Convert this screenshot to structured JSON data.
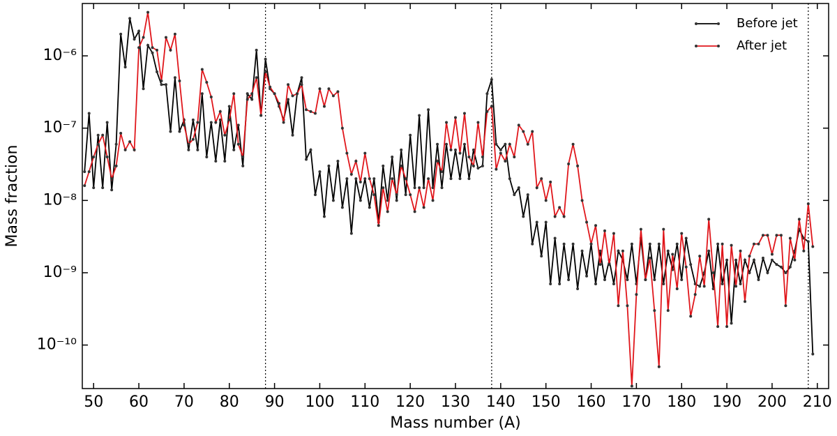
{
  "chart_data": {
    "type": "line",
    "xlabel": "Mass number (A)",
    "ylabel": "Mass fraction",
    "log_y": true,
    "legend": "upper right",
    "xlim": [
      47.5,
      212.5
    ],
    "ylim": [
      2.5e-11,
      5.3e-06
    ],
    "xticks": [
      50,
      60,
      70,
      80,
      90,
      100,
      110,
      120,
      130,
      140,
      150,
      160,
      170,
      180,
      190,
      200,
      210
    ],
    "yticks": [
      {
        "value": 1e-10,
        "label": "10⁻¹⁰"
      },
      {
        "value": 1e-09,
        "label": "10⁻⁹"
      },
      {
        "value": 1e-08,
        "label": "10⁻⁸"
      },
      {
        "value": 1e-07,
        "label": "10⁻⁷"
      },
      {
        "value": 1e-06,
        "label": "10⁻⁶"
      }
    ],
    "vlines": [
      88,
      138,
      208
    ],
    "x": [
      48,
      49,
      50,
      51,
      52,
      53,
      54,
      55,
      56,
      57,
      58,
      59,
      60,
      61,
      62,
      63,
      64,
      65,
      66,
      67,
      68,
      69,
      70,
      71,
      72,
      73,
      74,
      75,
      76,
      77,
      78,
      79,
      80,
      81,
      82,
      83,
      84,
      85,
      86,
      87,
      88,
      89,
      90,
      91,
      92,
      93,
      94,
      95,
      96,
      97,
      98,
      99,
      100,
      101,
      102,
      103,
      104,
      105,
      106,
      107,
      108,
      109,
      110,
      111,
      112,
      113,
      114,
      115,
      116,
      117,
      118,
      119,
      120,
      121,
      122,
      123,
      124,
      125,
      126,
      127,
      128,
      129,
      130,
      131,
      132,
      133,
      134,
      135,
      136,
      137,
      138,
      139,
      140,
      141,
      142,
      143,
      144,
      145,
      146,
      147,
      148,
      149,
      150,
      151,
      152,
      153,
      154,
      155,
      156,
      157,
      158,
      159,
      160,
      161,
      162,
      163,
      164,
      165,
      166,
      167,
      168,
      169,
      170,
      171,
      172,
      173,
      174,
      175,
      176,
      177,
      178,
      179,
      180,
      181,
      182,
      183,
      184,
      185,
      186,
      187,
      188,
      189,
      190,
      191,
      192,
      193,
      194,
      195,
      196,
      197,
      198,
      199,
      200,
      201,
      202,
      203,
      204,
      205,
      206,
      207,
      208,
      209
    ],
    "series": [
      {
        "name": "Before jet",
        "color": "#000000",
        "values": [
          2.5e-08,
          1.6e-07,
          1.5e-08,
          8e-08,
          1.5e-08,
          1.2e-07,
          1.4e-08,
          6e-08,
          2e-06,
          7e-07,
          3.3e-06,
          1.7e-06,
          2.2e-06,
          3.5e-07,
          1.4e-06,
          1.1e-06,
          6e-07,
          4e-07,
          4e-07,
          9e-08,
          5e-07,
          9e-08,
          1.3e-07,
          5e-08,
          1.3e-07,
          5e-08,
          3e-07,
          4e-08,
          1.2e-07,
          3.5e-08,
          1.3e-07,
          3.5e-08,
          2e-07,
          5e-08,
          1.1e-07,
          3e-08,
          3e-07,
          2.5e-07,
          1.2e-06,
          1.5e-07,
          9e-07,
          3.5e-07,
          3e-07,
          2e-07,
          1.3e-07,
          2.5e-07,
          8e-08,
          3e-07,
          5e-07,
          3.7e-08,
          5e-08,
          1.2e-08,
          2.5e-08,
          6e-09,
          3e-08,
          1e-08,
          3.5e-08,
          8e-09,
          2e-08,
          3.5e-09,
          2e-08,
          1e-08,
          2e-08,
          8e-09,
          2e-08,
          5e-09,
          3e-08,
          1e-08,
          4e-08,
          1e-08,
          5e-08,
          1.2e-08,
          8e-08,
          1.5e-08,
          1.5e-07,
          1.5e-08,
          1.8e-07,
          1.5e-08,
          6e-08,
          1.5e-08,
          6e-08,
          2e-08,
          5e-08,
          2e-08,
          6e-08,
          2e-08,
          5e-08,
          2.8e-08,
          3e-08,
          3e-07,
          4.7e-07,
          6e-08,
          5e-08,
          6e-08,
          2e-08,
          1.2e-08,
          1.5e-08,
          6e-09,
          1.2e-08,
          2.5e-09,
          5e-09,
          1.7e-09,
          5e-09,
          7e-10,
          3e-09,
          7e-10,
          2.5e-09,
          8e-10,
          2.5e-09,
          6e-10,
          2e-09,
          9e-10,
          2.5e-09,
          7e-10,
          2e-09,
          8e-10,
          1.5e-09,
          7e-10,
          2e-09,
          1.5e-09,
          8e-10,
          2.5e-09,
          7e-10,
          3e-09,
          8e-10,
          2.5e-09,
          8e-10,
          2.5e-09,
          7e-10,
          2e-09,
          1.1e-09,
          2.5e-09,
          8e-10,
          3e-09,
          1.3e-09,
          7e-10,
          6.5e-10,
          1e-09,
          2e-09,
          6e-10,
          2.5e-09,
          7e-10,
          1.5e-09,
          2e-10,
          1.5e-09,
          7e-10,
          1.5e-09,
          1e-09,
          1.5e-09,
          8e-10,
          1.6e-09,
          1e-09,
          1.5e-09,
          1.3e-09,
          1.2e-09,
          1e-09,
          1.2e-09,
          2e-09,
          4e-09,
          3e-09,
          2.7e-09,
          7.5e-11
        ]
      },
      {
        "name": "After jet",
        "color": "#e0161b",
        "values": [
          1.6e-08,
          2.5e-08,
          4e-08,
          6e-08,
          8e-08,
          4e-08,
          2e-08,
          3e-08,
          8.5e-08,
          5e-08,
          6.5e-08,
          5e-08,
          1.3e-06,
          1.8e-06,
          4e-06,
          1.3e-06,
          1.2e-06,
          4.5e-07,
          1.8e-06,
          1.2e-06,
          2e-06,
          4.5e-07,
          1.1e-07,
          6e-08,
          7e-08,
          1.2e-07,
          6.5e-07,
          4.3e-07,
          2.7e-07,
          1.2e-07,
          1.7e-07,
          8e-08,
          1.3e-07,
          3e-07,
          6e-08,
          4e-08,
          2.5e-07,
          3e-07,
          5e-07,
          1.5e-07,
          6e-07,
          3.7e-07,
          3e-07,
          2.2e-07,
          1.2e-07,
          4e-07,
          2.8e-07,
          3e-07,
          4e-07,
          1.8e-07,
          1.7e-07,
          1.6e-07,
          3.5e-07,
          2e-07,
          3.5e-07,
          2.8e-07,
          3.2e-07,
          1e-07,
          4.5e-08,
          2.3e-08,
          3.5e-08,
          1.8e-08,
          4.5e-08,
          2e-08,
          1.2e-08,
          4.5e-09,
          1.5e-08,
          7e-09,
          2e-08,
          1.2e-08,
          3e-08,
          2e-08,
          1.2e-08,
          7e-09,
          1.5e-08,
          8e-09,
          2e-08,
          1e-08,
          3.5e-08,
          2.5e-08,
          1.2e-07,
          5e-08,
          1.4e-07,
          4.5e-08,
          1.6e-07,
          4e-08,
          3e-08,
          1.2e-07,
          4e-08,
          1.7e-07,
          2e-07,
          2.7e-08,
          4.5e-08,
          3.5e-08,
          6e-08,
          4e-08,
          1.1e-07,
          9e-08,
          6e-08,
          9e-08,
          1.5e-08,
          2e-08,
          1e-08,
          1.8e-08,
          6e-09,
          8e-09,
          6e-09,
          3.2e-08,
          6e-08,
          3e-08,
          1e-08,
          5e-09,
          2.5e-09,
          4.5e-09,
          1.3e-09,
          3.8e-09,
          1.3e-09,
          3.5e-09,
          3.5e-10,
          2e-09,
          3.5e-10,
          2.7e-11,
          5e-10,
          4e-09,
          8e-10,
          1.6e-09,
          3e-10,
          5e-11,
          4e-09,
          3e-10,
          1.8e-09,
          6e-10,
          3.5e-09,
          1.2e-09,
          2.5e-10,
          5e-10,
          1.7e-09,
          6.5e-10,
          5.5e-09,
          1e-09,
          1.8e-10,
          2.5e-09,
          1.8e-10,
          2.4e-09,
          6.5e-10,
          2e-09,
          4e-10,
          1.7e-09,
          2.5e-09,
          2.5e-09,
          3.3e-09,
          3.3e-09,
          1.8e-09,
          3.3e-09,
          3.3e-09,
          3.5e-10,
          3e-09,
          1.5e-09,
          5.5e-09,
          2e-09,
          9e-09,
          2.3e-09
        ]
      }
    ]
  }
}
